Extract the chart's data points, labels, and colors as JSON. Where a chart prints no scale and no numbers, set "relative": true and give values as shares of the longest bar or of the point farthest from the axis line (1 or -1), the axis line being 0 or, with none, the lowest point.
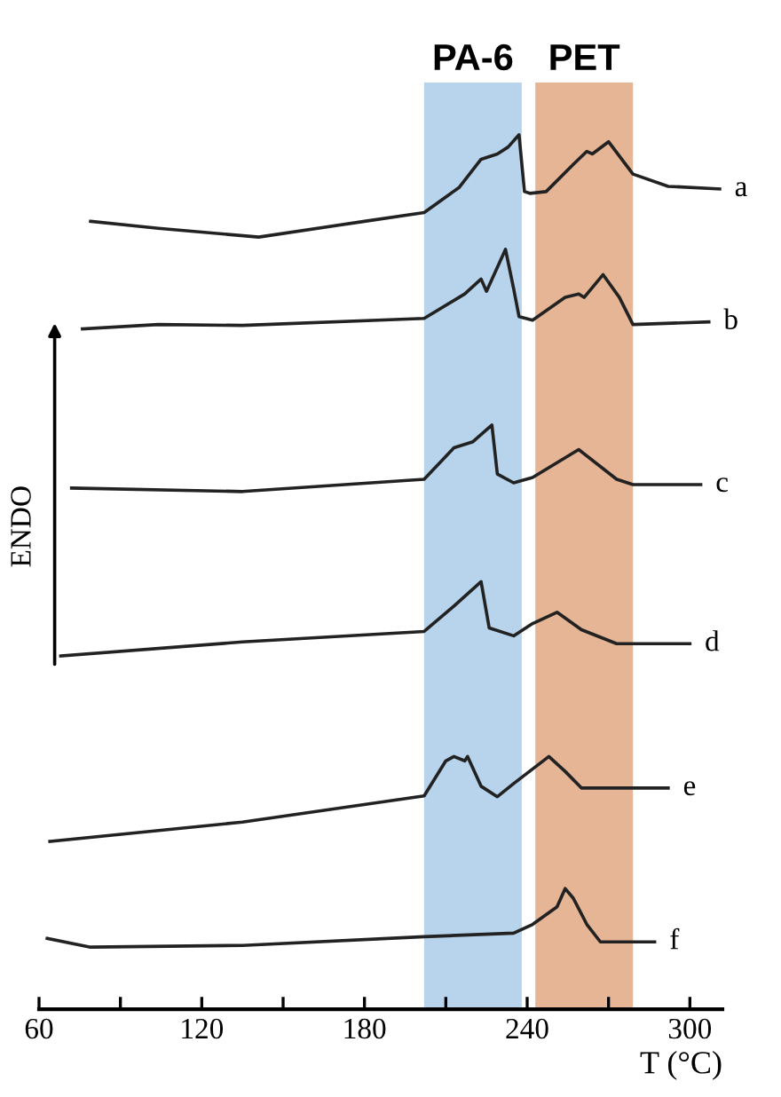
{
  "chart_data": {
    "type": "line",
    "relative": true,
    "xlabel": "T (°C)",
    "ylabel": "ENDO",
    "xlim": [
      60,
      312
    ],
    "xticks": [
      60,
      {
        "value": 90,
        "label": null
      },
      120,
      {
        "value": 150,
        "label": null
      },
      180,
      {
        "value": 210,
        "label": null
      },
      240,
      {
        "value": 270,
        "label": null
      },
      300
    ],
    "bands": [
      {
        "axis": "x",
        "from": 202,
        "to": 238,
        "label": "PA-6",
        "color": "#b8d3ec"
      },
      {
        "axis": "x",
        "from": 243,
        "to": 279,
        "label": "PET",
        "color": "#e6b595"
      }
    ],
    "legend": false,
    "grid": false,
    "marker": "none",
    "line_style": "solid",
    "series": [
      {
        "name": "a",
        "color": "#222222",
        "x": [
          79,
          104,
          141,
          180,
          202,
          215,
          223,
          229,
          233,
          237,
          239,
          241,
          247,
          257,
          262,
          264,
          270,
          279,
          292,
          311
        ],
        "values": [
          0.901,
          0.893,
          0.883,
          0.901,
          0.911,
          0.94,
          0.972,
          0.978,
          0.986,
          1.0,
          0.935,
          0.933,
          0.935,
          0.966,
          0.981,
          0.978,
          0.992,
          0.955,
          0.941,
          0.938
        ]
      },
      {
        "name": "b",
        "color": "#222222",
        "x": [
          76,
          104,
          135,
          202,
          217,
          223,
          225,
          232,
          235,
          237,
          242,
          254,
          259,
          261,
          268,
          274,
          279,
          307
        ],
        "values": [
          0.778,
          0.783,
          0.782,
          0.79,
          0.818,
          0.835,
          0.821,
          0.869,
          0.824,
          0.792,
          0.788,
          0.814,
          0.818,
          0.814,
          0.84,
          0.814,
          0.783,
          0.786
        ]
      },
      {
        "name": "c",
        "color": "#222222",
        "x": [
          72,
          135,
          202,
          213,
          220,
          227,
          229,
          235,
          242,
          259,
          273,
          279,
          304
        ],
        "values": [
          0.596,
          0.592,
          0.606,
          0.642,
          0.649,
          0.668,
          0.612,
          0.602,
          0.608,
          0.64,
          0.606,
          0.6,
          0.6
        ]
      },
      {
        "name": "d",
        "color": "#222222",
        "x": [
          68,
          135,
          202,
          213,
          218,
          223,
          226,
          235,
          242,
          251,
          260,
          273,
          300
        ],
        "values": [
          0.404,
          0.42,
          0.432,
          0.461,
          0.475,
          0.489,
          0.436,
          0.427,
          0.441,
          0.454,
          0.434,
          0.418,
          0.418
        ]
      },
      {
        "name": "e",
        "color": "#222222",
        "x": [
          64,
          135,
          202,
          210,
          213,
          217,
          218,
          223,
          229,
          235,
          248,
          254,
          260,
          292
        ],
        "values": [
          0.192,
          0.214,
          0.244,
          0.284,
          0.289,
          0.284,
          0.289,
          0.255,
          0.243,
          0.258,
          0.289,
          0.272,
          0.253,
          0.253
        ]
      },
      {
        "name": "f",
        "color": "#222222",
        "x": [
          63,
          79,
          135,
          202,
          235,
          242,
          251,
          254,
          257,
          262,
          267,
          287
        ],
        "values": [
          0.081,
          0.071,
          0.073,
          0.083,
          0.087,
          0.097,
          0.117,
          0.138,
          0.127,
          0.097,
          0.077,
          0.077
        ]
      }
    ]
  }
}
